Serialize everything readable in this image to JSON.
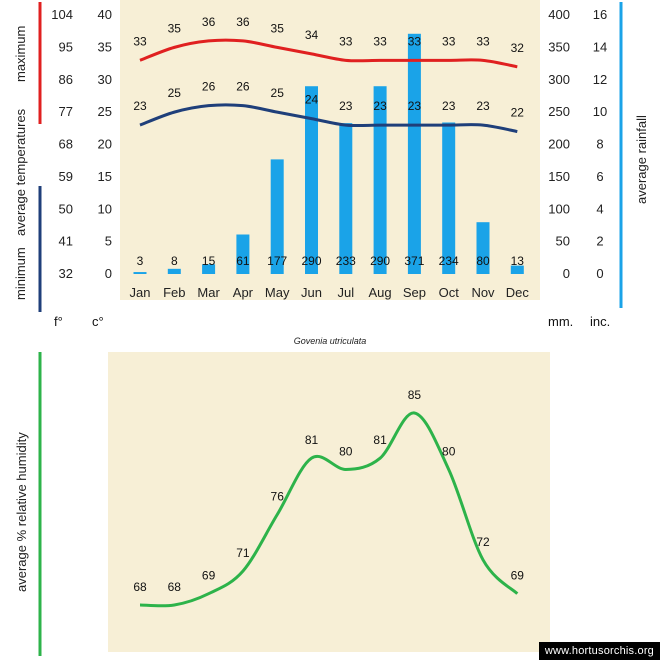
{
  "title": "Govenia utriculata",
  "watermark": "www.hortusorchis.org",
  "colors": {
    "maximum": "#e02020",
    "minimum": "#1f3f7a",
    "rainfall": "#1aa3e8",
    "humidity": "#2db34a",
    "panel": "#f7efd6"
  },
  "labels": {
    "maximum": "maximum",
    "average_temperatures": "average  temperatures",
    "minimum": "minimum",
    "average_rainfall": "average rainfall",
    "humidity_axis": "average %  relative humidity",
    "unit_f": "f°",
    "unit_c": "c°",
    "unit_mm": "mm.",
    "unit_inc": "inc."
  },
  "chart_data": [
    {
      "type": "bar",
      "categories": [
        "Jan",
        "Feb",
        "Mar",
        "Apr",
        "May",
        "Jun",
        "Jul",
        "Aug",
        "Sep",
        "Oct",
        "Nov",
        "Dec"
      ],
      "temp_axis_c": [
        0,
        5,
        10,
        15,
        20,
        25,
        30,
        35,
        40
      ],
      "temp_axis_f": [
        32,
        41,
        50,
        59,
        68,
        77,
        86,
        95,
        104
      ],
      "rain_axis_mm": [
        0,
        50,
        100,
        150,
        200,
        250,
        300,
        350,
        400
      ],
      "rain_axis_inc": [
        0,
        2,
        4,
        6,
        8,
        10,
        12,
        14,
        16
      ],
      "ylim_c": [
        0,
        40
      ],
      "ylim_mm": [
        0,
        400
      ],
      "series": [
        {
          "name": "maximum",
          "kind": "line",
          "values": [
            33,
            35,
            36,
            36,
            35,
            34,
            33,
            33,
            33,
            33,
            33,
            32
          ]
        },
        {
          "name": "minimum",
          "kind": "line",
          "values": [
            23,
            25,
            26,
            26,
            25,
            24,
            23,
            23,
            23,
            23,
            23,
            22
          ]
        },
        {
          "name": "average rainfall",
          "kind": "bar",
          "values": [
            3,
            8,
            15,
            61,
            177,
            290,
            233,
            290,
            371,
            234,
            80,
            13
          ]
        }
      ]
    },
    {
      "type": "line",
      "categories": [
        "Jan",
        "Feb",
        "Mar",
        "Apr",
        "May",
        "Jun",
        "Jul",
        "Aug",
        "Sep",
        "Oct",
        "Nov",
        "Dec"
      ],
      "series": [
        {
          "name": "average %  relative humidity",
          "values": [
            68,
            68,
            69,
            71,
            76,
            81,
            80,
            81,
            85,
            80,
            72,
            69
          ]
        }
      ]
    }
  ]
}
